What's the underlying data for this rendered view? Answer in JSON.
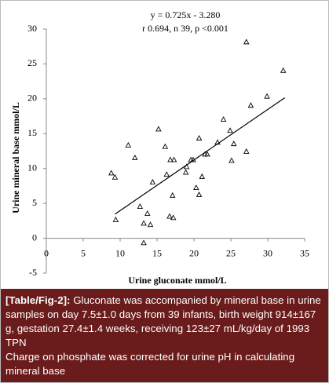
{
  "chart_data": {
    "type": "scatter",
    "title": "y = 0.725x - 3.280",
    "subtitle": "r 0.694, n 39, p <0.001",
    "x_label": "Urine gluconate  mmol/L",
    "y_label": "Urine mineral base  mmol/L",
    "series": [
      {
        "name": "samples",
        "color": "#000000",
        "x": [
          8.8,
          9.3,
          9.4,
          11.1,
          12.0,
          12.7,
          13.2,
          13.7,
          14.1,
          13.2,
          14.4,
          15.2,
          16.1,
          16.3,
          16.8,
          17.3,
          16.7,
          17.2,
          17.1,
          18.9,
          19.0,
          19.6,
          19.9,
          20.3,
          20.7,
          20.7,
          21.1,
          21.5,
          21.8,
          23.2,
          24.0,
          24.9,
          25.4,
          25.1,
          27.1,
          27.7,
          27.1,
          29.9,
          32.1
        ],
        "values": [
          9.3,
          8.7,
          2.6,
          13.3,
          11.5,
          4.5,
          2.1,
          3.5,
          1.9,
          -0.7,
          8.0,
          15.6,
          13.1,
          9.1,
          11.2,
          11.2,
          3.1,
          2.9,
          6.1,
          9.4,
          10.2,
          11.2,
          11.2,
          7.2,
          14.3,
          6.2,
          8.8,
          12.0,
          12.0,
          13.7,
          17.0,
          15.4,
          13.5,
          11.1,
          12.4,
          19.0,
          28.1,
          20.3,
          24.0
        ]
      }
    ],
    "trendline": {
      "x": [
        9.3,
        32.3
      ],
      "values": [
        3.46,
        20.14
      ]
    },
    "xlim": [
      0,
      35
    ],
    "xticks": [
      0,
      5,
      10,
      15,
      20,
      25,
      30,
      35
    ],
    "ylim": [
      -5,
      30
    ],
    "yticks": [
      -5,
      0,
      5,
      10,
      15,
      20,
      25,
      30
    ]
  },
  "caption": {
    "label": "[Table/Fig-2]:",
    "text": "Gluconate was accompanied by mineral base in urine samples on day 7.5±1.0 days from 39 infants, birth weight 914±167 g, gestation 27.4±1.4 weeks, receiving 123±27 mL/kg/day of 1993 TPN",
    "note": "Charge on phosphate was corrected for urine pH in calculating mineral base"
  }
}
